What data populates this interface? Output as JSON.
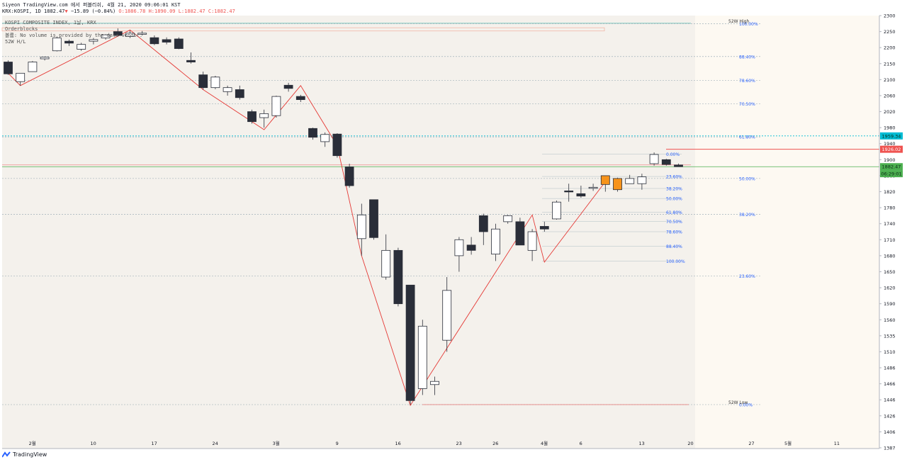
{
  "header": {
    "line1": "Siyeon TradingView.com 에서 퍼블리쉬, 4월 21, 2020 09:06:01 KST",
    "symbol": "KRX:KOSPI, 1D",
    "last": "1882.47",
    "change": "−15.89 (−0.84%)",
    "o": "O:1886.78",
    "h": "H:1890.09",
    "l": "L:1882.47",
    "c": "C:1882.47"
  },
  "legend": {
    "title": "KOSPI COMPOSITE INDEX, 1날, KRX",
    "ind1": "Orderblocks",
    "ind2": "볼륨: No volume is provided by the data vendor.",
    "ind3": "52W H/L"
  },
  "footer": {
    "brand": "TradingView"
  },
  "colors": {
    "up_body": "#ffffff",
    "down_body": "#2a2e39",
    "orange": "#f7931a",
    "zigzag": "#e53935",
    "fib": "#2962ff",
    "level_cyan": "#00bcd4",
    "level_red": "#ef5350",
    "level_green": "#4caf50"
  },
  "chart_data": {
    "type": "candlestick",
    "symbol": "KOSPI COMPOSITE INDEX",
    "timeframe": "1D",
    "y_ticks": [
      2300,
      2250,
      2200,
      2150,
      2100,
      2060,
      2020,
      1980,
      1940,
      1900,
      1860,
      1820,
      1780,
      1740,
      1710,
      1680,
      1650,
      1620,
      1590,
      1560,
      1535,
      1510,
      1486,
      1466,
      1446,
      1426,
      1406,
      1387
    ],
    "x_ticks": [
      "2월",
      "10",
      "17",
      "24",
      "3월",
      "9",
      "16",
      "23",
      "26",
      "4월",
      "6",
      "13",
      "20",
      "27",
      "5월",
      "11"
    ],
    "x_tick_bars": [
      1,
      6,
      11,
      16,
      21,
      26,
      31,
      36,
      39,
      43,
      46,
      51,
      55,
      60,
      63,
      67
    ],
    "candles": [
      {
        "o": 2155,
        "h": 2160,
        "l": 2115,
        "c": 2118
      },
      {
        "o": 2095,
        "h": 2120,
        "l": 2085,
        "c": 2120
      },
      {
        "o": 2125,
        "h": 2158,
        "l": 2124,
        "c": 2155
      },
      {
        "o": 2165,
        "h": 2172,
        "l": 2160,
        "c": 2170
      },
      {
        "o": 2190,
        "h": 2235,
        "l": 2188,
        "c": 2230
      },
      {
        "o": 2220,
        "h": 2225,
        "l": 2205,
        "c": 2214
      },
      {
        "o": 2195,
        "h": 2215,
        "l": 2190,
        "c": 2210
      },
      {
        "o": 2220,
        "h": 2230,
        "l": 2210,
        "c": 2225
      },
      {
        "o": 2230,
        "h": 2242,
        "l": 2225,
        "c": 2240
      },
      {
        "o": 2250,
        "h": 2260,
        "l": 2240,
        "c": 2238
      },
      {
        "o": 2235,
        "h": 2253,
        "l": 2230,
        "c": 2245
      },
      {
        "o": 2242,
        "h": 2252,
        "l": 2238,
        "c": 2245
      },
      {
        "o": 2231,
        "h": 2238,
        "l": 2208,
        "c": 2212
      },
      {
        "o": 2225,
        "h": 2232,
        "l": 2210,
        "c": 2217
      },
      {
        "o": 2227,
        "h": 2232,
        "l": 2195,
        "c": 2197
      },
      {
        "o": 2160,
        "h": 2185,
        "l": 2150,
        "c": 2155
      },
      {
        "o": 2115,
        "h": 2125,
        "l": 2075,
        "c": 2080
      },
      {
        "o": 2080,
        "h": 2112,
        "l": 2076,
        "c": 2108
      },
      {
        "o": 2070,
        "h": 2085,
        "l": 2060,
        "c": 2080
      },
      {
        "o": 2075,
        "h": 2085,
        "l": 2050,
        "c": 2055
      },
      {
        "o": 2020,
        "h": 2025,
        "l": 1990,
        "c": 1995
      },
      {
        "o": 2005,
        "h": 2025,
        "l": 1980,
        "c": 2015
      },
      {
        "o": 2010,
        "h": 2060,
        "l": 2005,
        "c": 2058
      },
      {
        "o": 2086,
        "h": 2092,
        "l": 2070,
        "c": 2078
      },
      {
        "o": 2058,
        "h": 2062,
        "l": 2044,
        "c": 2050
      },
      {
        "o": 1978,
        "h": 1980,
        "l": 1950,
        "c": 1956
      },
      {
        "o": 1945,
        "h": 1968,
        "l": 1932,
        "c": 1963
      },
      {
        "o": 1964,
        "h": 1966,
        "l": 1905,
        "c": 1910
      },
      {
        "o": 1882,
        "h": 1890,
        "l": 1830,
        "c": 1835
      },
      {
        "o": 1712,
        "h": 1790,
        "l": 1680,
        "c": 1762
      },
      {
        "o": 1800,
        "h": 1800,
        "l": 1710,
        "c": 1714
      },
      {
        "o": 1640,
        "h": 1720,
        "l": 1635,
        "c": 1690
      },
      {
        "o": 1690,
        "h": 1695,
        "l": 1585,
        "c": 1590
      },
      {
        "o": 1625,
        "h": 1625,
        "l": 1440,
        "c": 1445
      },
      {
        "o": 1460,
        "h": 1560,
        "l": 1452,
        "c": 1550
      },
      {
        "o": 1465,
        "h": 1475,
        "l": 1452,
        "c": 1469
      },
      {
        "o": 1528,
        "h": 1640,
        "l": 1510,
        "c": 1615
      },
      {
        "o": 1680,
        "h": 1715,
        "l": 1650,
        "c": 1710
      },
      {
        "o": 1700,
        "h": 1715,
        "l": 1682,
        "c": 1690
      },
      {
        "o": 1760,
        "h": 1765,
        "l": 1700,
        "c": 1725
      },
      {
        "o": 1683,
        "h": 1740,
        "l": 1670,
        "c": 1730
      },
      {
        "o": 1745,
        "h": 1762,
        "l": 1740,
        "c": 1760
      },
      {
        "o": 1745,
        "h": 1755,
        "l": 1700,
        "c": 1700
      },
      {
        "o": 1690,
        "h": 1730,
        "l": 1670,
        "c": 1725
      },
      {
        "o": 1735,
        "h": 1745,
        "l": 1725,
        "c": 1730
      },
      {
        "o": 1752,
        "h": 1798,
        "l": 1750,
        "c": 1794
      },
      {
        "o": 1822,
        "h": 1840,
        "l": 1795,
        "c": 1820
      },
      {
        "o": 1815,
        "h": 1835,
        "l": 1805,
        "c": 1809
      },
      {
        "o": 1831,
        "h": 1840,
        "l": 1822,
        "c": 1831
      },
      {
        "o": 1838,
        "h": 1858,
        "l": 1820,
        "c": 1860,
        "orange": true
      },
      {
        "o": 1853,
        "h": 1855,
        "l": 1820,
        "c": 1825,
        "orange": true
      },
      {
        "o": 1840,
        "h": 1862,
        "l": 1840,
        "c": 1853
      },
      {
        "o": 1840,
        "h": 1865,
        "l": 1825,
        "c": 1857
      },
      {
        "o": 1890,
        "h": 1918,
        "l": 1885,
        "c": 1913
      },
      {
        "o": 1900,
        "h": 1902,
        "l": 1885,
        "c": 1888
      },
      {
        "o": 1886.78,
        "h": 1890.09,
        "l": 1882.47,
        "c": 1882.47
      }
    ],
    "zigzag": [
      {
        "bar": 0,
        "price": 2120
      },
      {
        "bar": 1,
        "price": 2085
      },
      {
        "bar": 10,
        "price": 2255
      },
      {
        "bar": 16,
        "price": 2075
      },
      {
        "bar": 21,
        "price": 1975
      },
      {
        "bar": 24,
        "price": 2085
      },
      {
        "bar": 27,
        "price": 1935
      },
      {
        "bar": 29,
        "price": 1680
      },
      {
        "bar": 33,
        "price": 1439
      },
      {
        "bar": 43,
        "price": 1762
      },
      {
        "bar": 44,
        "price": 1668
      },
      {
        "bar": 49,
        "price": 1845
      }
    ],
    "fib_major": [
      {
        "label": "100.00%",
        "price": 2275
      },
      {
        "label": "88.40%",
        "price": 2172
      },
      {
        "label": "78.60%",
        "price": 2098
      },
      {
        "label": "70.50%",
        "price": 2040
      },
      {
        "label": "61.80%",
        "price": 1957
      },
      {
        "label": "50.00%",
        "price": 1853
      },
      {
        "label": "38.20%",
        "price": 1763
      },
      {
        "label": "23.60%",
        "price": 1642
      },
      {
        "label": "0.00%",
        "price": 1440
      }
    ],
    "fib_minor": [
      {
        "label": "0.00%",
        "price": 1914
      },
      {
        "label": "23.60%",
        "price": 1858
      },
      {
        "label": "38.20%",
        "price": 1828
      },
      {
        "label": "50.00%",
        "price": 1803
      },
      {
        "label": "61.80%",
        "price": 1769
      },
      {
        "label": "70.50%",
        "price": 1746
      },
      {
        "label": "78.60%",
        "price": 1725
      },
      {
        "label": "88.40%",
        "price": 1698
      },
      {
        "label": "100.00%",
        "price": 1670
      }
    ],
    "hl_labels": [
      {
        "label": "52W High",
        "price": 2276
      },
      {
        "label": "52W Low",
        "price": 1440
      }
    ],
    "price_badges": [
      {
        "label": "1959.34",
        "price": 1959.34,
        "color": "#00bcd4"
      },
      {
        "label": "1926.02",
        "price": 1926.02,
        "color": "#ef5350"
      },
      {
        "label": "1882.47",
        "price": 1882.47,
        "color": "#4caf50"
      },
      {
        "label": "06:29:01",
        "price": 1865,
        "color": "#4caf50"
      }
    ]
  }
}
